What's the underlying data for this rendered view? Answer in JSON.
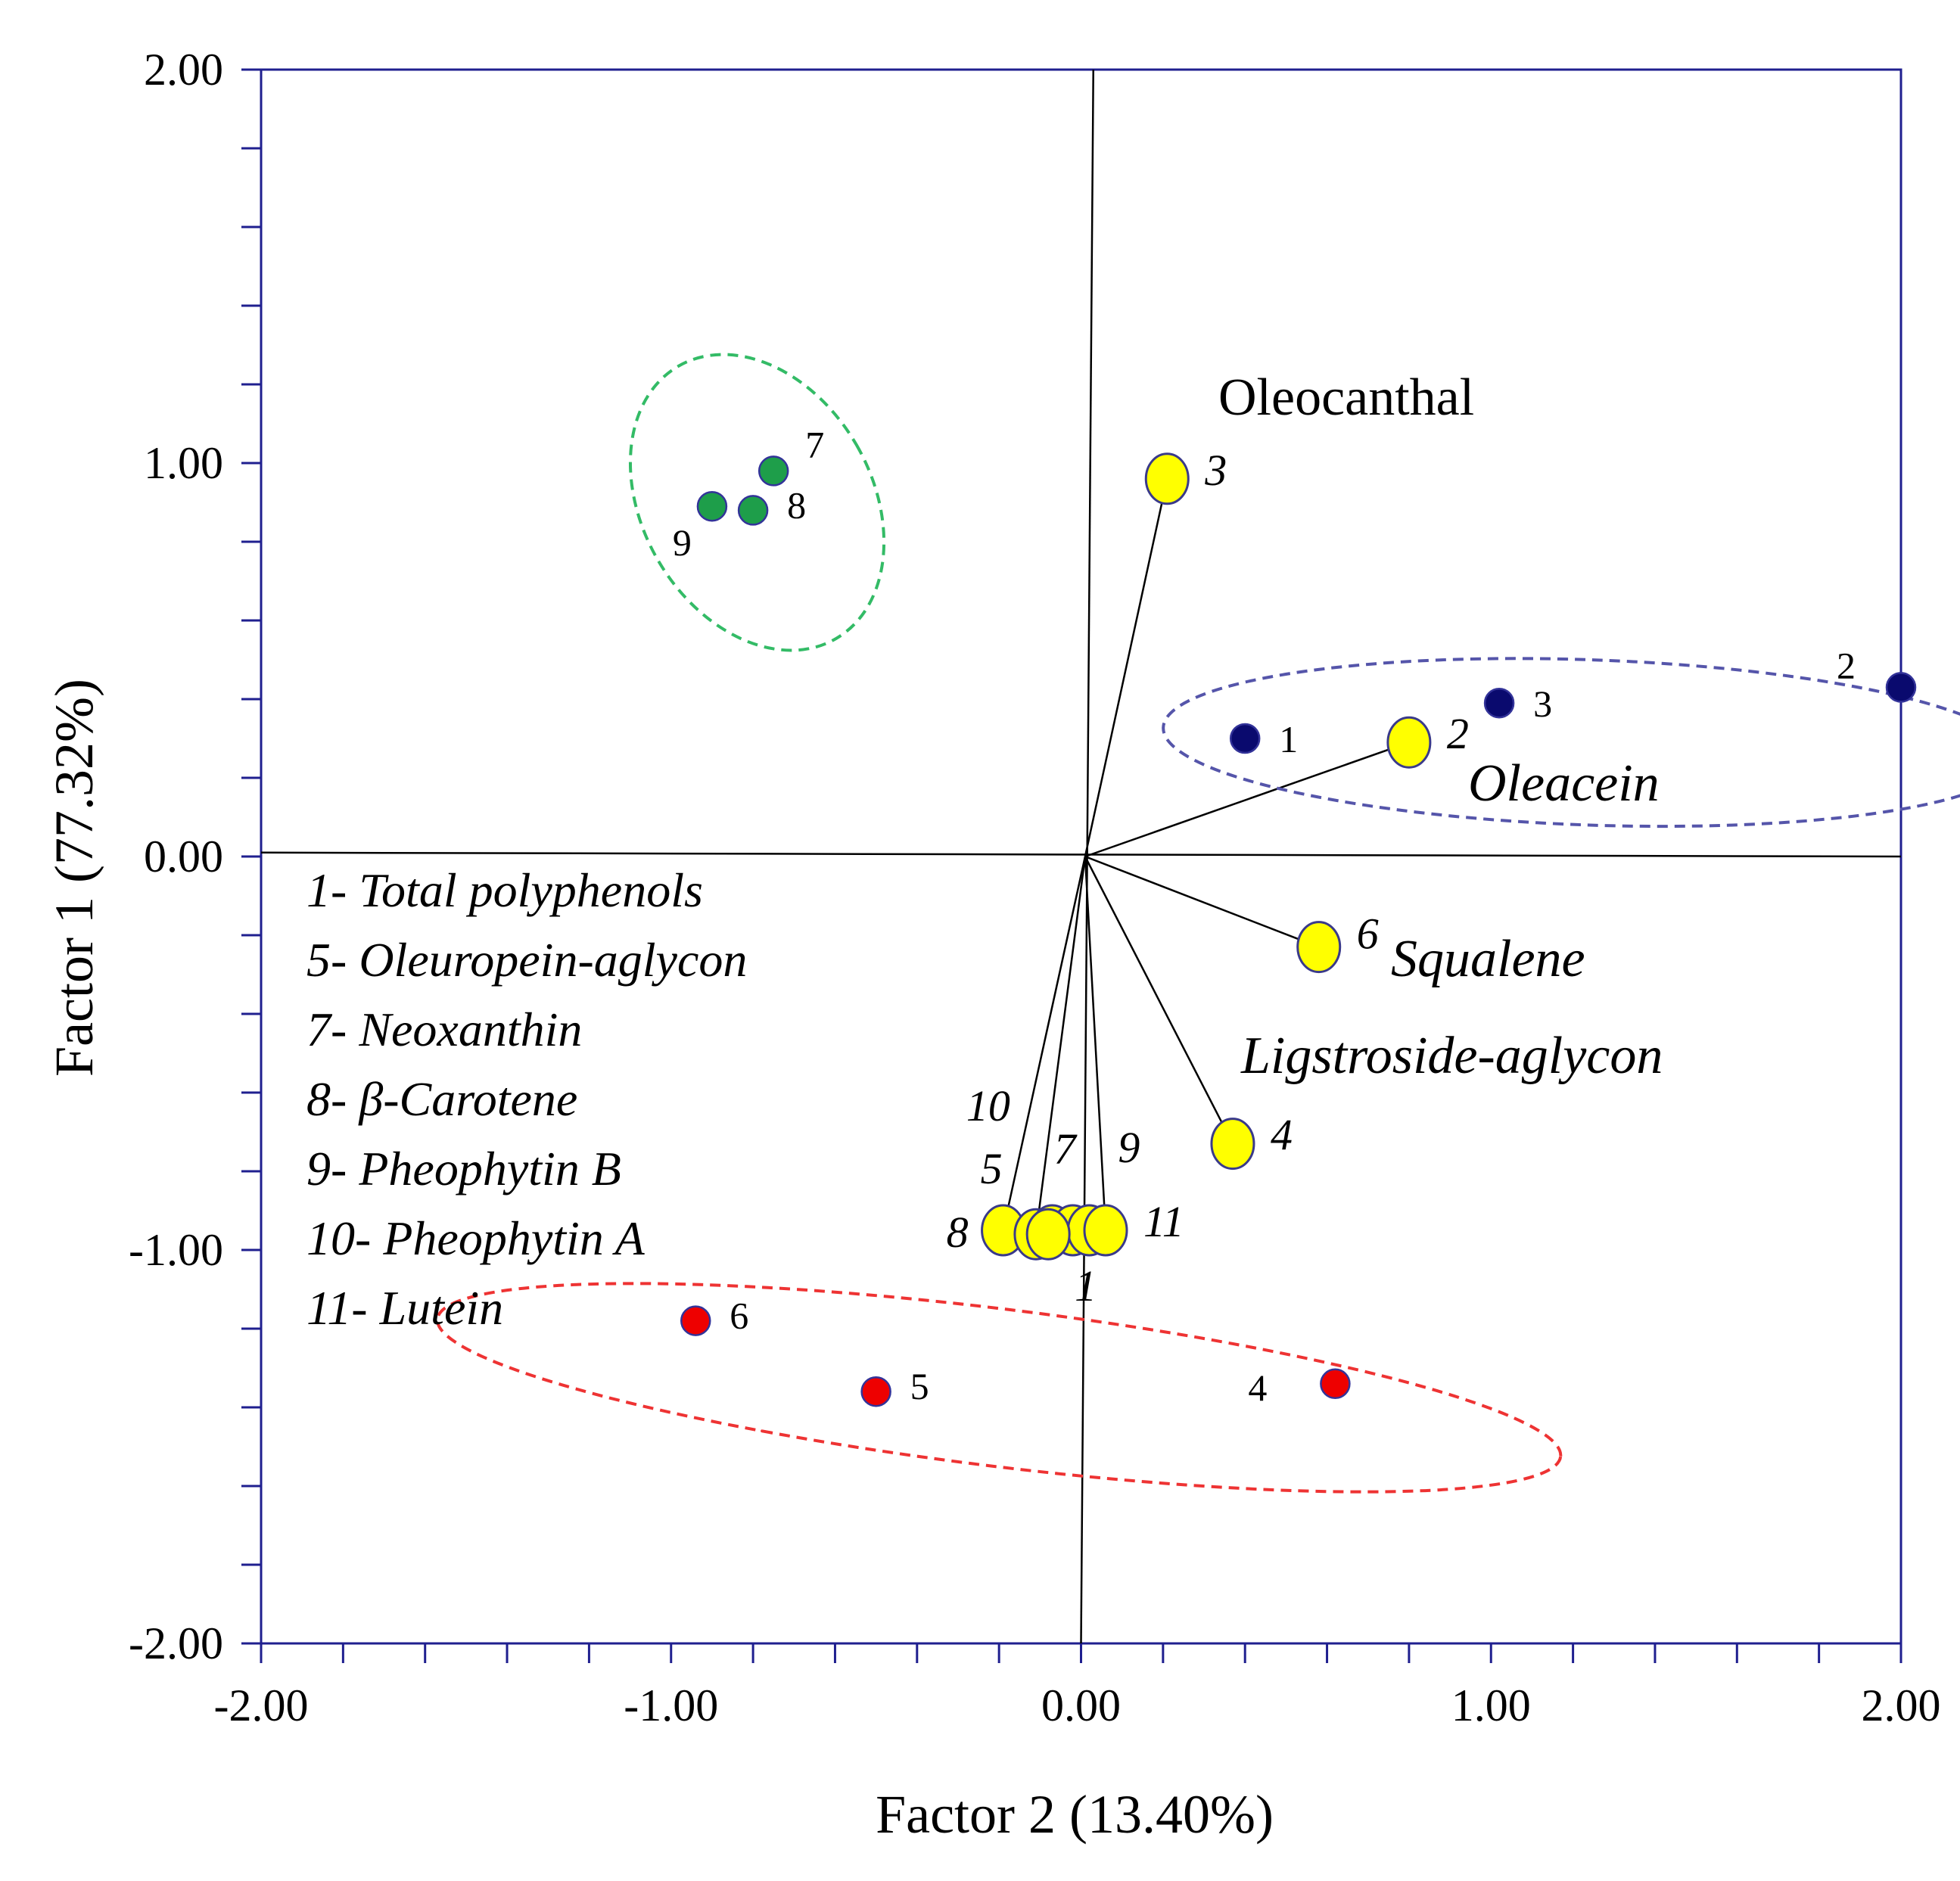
{
  "chart_data": {
    "type": "scatter",
    "title": "",
    "xlabel": "Factor 2 (13.40%)",
    "ylabel": "Factor 1 (77.32%)",
    "xlim": [
      -2,
      2
    ],
    "ylim": [
      -2,
      2
    ],
    "x_ticks": [
      -2,
      -1,
      0,
      1,
      2
    ],
    "x_tick_labels": [
      "-2.00",
      "-1.00",
      "0.00",
      "1.00",
      "2.00"
    ],
    "y_ticks": [
      -2,
      -1,
      0,
      1,
      2
    ],
    "y_tick_labels": [
      "-2.00",
      "-1.00",
      "0.00",
      "1.00",
      "2.00"
    ],
    "minor_tick_step": 0.2,
    "colors": {
      "axis": "#1f1f8f",
      "line": "#000000",
      "variable_fill": "#ffff00",
      "variable_stroke": "#3a3a8a",
      "group_green": "#1e9e4a",
      "group_blue": "#0a0a6e",
      "group_red": "#ee0000",
      "ellipse_green": "#33bb66",
      "ellipse_blue": "#5555aa",
      "ellipse_red": "#ee3333"
    },
    "reference_lines": [
      {
        "name": "vertical-axis-line",
        "x1": 0.03,
        "y1": 2.0,
        "x2": 0.0,
        "y2": -2.0
      },
      {
        "name": "horizontal-axis-line",
        "x1": -2.0,
        "y1": 0.01,
        "x2": 2.0,
        "y2": 0.0
      }
    ],
    "series": [
      {
        "name": "variables",
        "style": "loading",
        "points": [
          {
            "x": 0.21,
            "y": 0.96,
            "label": "3",
            "italic": true
          },
          {
            "x": 0.8,
            "y": 0.29,
            "label": "2",
            "italic": true
          },
          {
            "x": 0.58,
            "y": -0.23,
            "label": "6",
            "italic": true
          },
          {
            "x": 0.37,
            "y": -0.73,
            "label": "4",
            "italic": true
          },
          {
            "x": -0.19,
            "y": -0.95,
            "label": "8",
            "italic": true
          },
          {
            "x": -0.11,
            "y": -0.96,
            "label": "10",
            "italic": true
          },
          {
            "x": -0.07,
            "y": -0.95,
            "label": "5",
            "italic": true
          },
          {
            "x": -0.02,
            "y": -0.95,
            "label": "7",
            "italic": true
          },
          {
            "x": 0.02,
            "y": -0.95,
            "label": "9",
            "italic": true
          },
          {
            "x": -0.08,
            "y": -0.96,
            "label": "1",
            "italic": true
          },
          {
            "x": 0.06,
            "y": -0.95,
            "label": "11",
            "italic": true
          }
        ]
      },
      {
        "name": "group-green",
        "points": [
          {
            "x": -0.75,
            "y": 0.98,
            "label": "7"
          },
          {
            "x": -0.8,
            "y": 0.88,
            "label": "8"
          },
          {
            "x": -0.9,
            "y": 0.89,
            "label": "9"
          }
        ]
      },
      {
        "name": "group-blue",
        "points": [
          {
            "x": 0.4,
            "y": 0.3,
            "label": "1"
          },
          {
            "x": 1.02,
            "y": 0.39,
            "label": "3"
          },
          {
            "x": 2.0,
            "y": 0.43,
            "label": "2"
          }
        ]
      },
      {
        "name": "group-red",
        "points": [
          {
            "x": -0.94,
            "y": -1.18,
            "label": "6"
          },
          {
            "x": -0.5,
            "y": -1.36,
            "label": "5"
          },
          {
            "x": 0.62,
            "y": -1.34,
            "label": "4"
          }
        ]
      }
    ],
    "ellipses": [
      {
        "group": "group-green",
        "cx": -0.79,
        "cy": 0.9,
        "rx": 0.28,
        "ry": 0.4,
        "angle_deg": -30
      },
      {
        "group": "group-blue",
        "cx": 1.24,
        "cy": 0.29,
        "rx": 1.04,
        "ry": 0.21,
        "angle_deg": 2
      },
      {
        "group": "group-red",
        "cx": -0.2,
        "cy": -1.35,
        "rx": 1.38,
        "ry": 0.2,
        "angle_deg": 7
      }
    ],
    "annotations": {
      "oleocanthal": "Oleocanthal",
      "oleacein": "Oleacein",
      "squalene": "Squalene",
      "ligstroside": "Ligstroside-aglycon"
    },
    "legend": {
      "position": "left-middle",
      "items": [
        "1- Total polyphenols",
        "5- Oleuropein-aglycon",
        "7- Neoxanthin",
        "8- β-Carotene",
        "9- Pheophytin B",
        "10- Pheophytin A",
        "11- Lutein"
      ]
    }
  }
}
